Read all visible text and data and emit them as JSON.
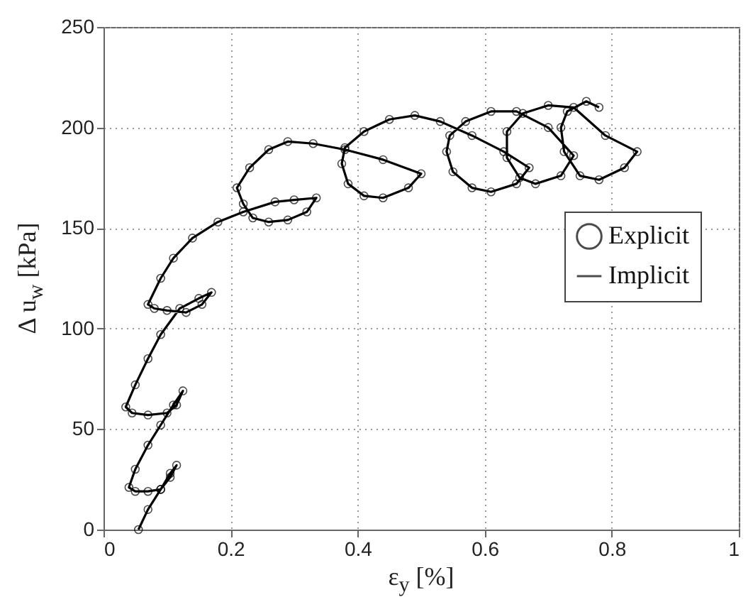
{
  "chart_data": {
    "type": "line",
    "xlabel": "ε$_{y}$ [%]",
    "ylabel": "Δ u$_{w}$ [kPa]",
    "xlim": [
      0,
      1
    ],
    "ylim": [
      0,
      250
    ],
    "xticks": [
      0,
      0.2,
      0.4,
      0.6,
      0.8,
      1
    ],
    "yticks": [
      0,
      50,
      100,
      150,
      200,
      250
    ],
    "grid": true,
    "legend": "right",
    "series": [
      {
        "name": "Explicit",
        "type": "scatter",
        "marker": "circle",
        "color": "#000000",
        "x": [
          0.055,
          0.07,
          0.09,
          0.105,
          0.115,
          0.105,
          0.09,
          0.07,
          0.05,
          0.04,
          0.05,
          0.07,
          0.09,
          0.11,
          0.125,
          0.115,
          0.1,
          0.07,
          0.045,
          0.035,
          0.05,
          0.07,
          0.09,
          0.12,
          0.15,
          0.17,
          0.155,
          0.13,
          0.1,
          0.08,
          0.07,
          0.09,
          0.11,
          0.14,
          0.18,
          0.22,
          0.27,
          0.3,
          0.335,
          0.32,
          0.29,
          0.26,
          0.235,
          0.22,
          0.21,
          0.23,
          0.26,
          0.29,
          0.33,
          0.38,
          0.44,
          0.5,
          0.48,
          0.44,
          0.41,
          0.385,
          0.375,
          0.38,
          0.41,
          0.45,
          0.49,
          0.53,
          0.58,
          0.63,
          0.67,
          0.65,
          0.61,
          0.58,
          0.55,
          0.54,
          0.545,
          0.57,
          0.61,
          0.65,
          0.7,
          0.74,
          0.72,
          0.68,
          0.655,
          0.635,
          0.635,
          0.66,
          0.7,
          0.74,
          0.79,
          0.84,
          0.82,
          0.78,
          0.75,
          0.725,
          0.72,
          0.73,
          0.76,
          0.78
        ],
        "values": [
          0,
          10,
          20,
          28,
          32,
          26,
          20,
          19,
          19,
          21,
          30,
          42,
          52,
          62,
          69,
          62,
          58,
          57,
          58,
          61,
          72,
          85,
          97,
          110,
          115,
          118,
          112,
          108,
          109,
          110,
          112,
          125,
          135,
          145,
          153,
          158,
          163,
          164,
          165,
          158,
          154,
          153,
          155,
          162,
          170,
          180,
          189,
          193,
          192,
          189,
          184,
          177,
          170,
          165,
          166,
          172,
          182,
          190,
          198,
          204,
          206,
          203,
          196,
          188,
          180,
          172,
          168,
          170,
          178,
          188,
          196,
          203,
          208,
          208,
          200,
          186,
          176,
          172,
          175,
          185,
          198,
          207,
          211,
          210,
          196,
          188,
          180,
          174,
          176,
          188,
          200,
          208,
          213,
          210
        ]
      },
      {
        "name": "Implicit",
        "line_style": "solid",
        "color": "#000000",
        "x": [
          0.055,
          0.07,
          0.09,
          0.105,
          0.115,
          0.105,
          0.09,
          0.07,
          0.05,
          0.04,
          0.05,
          0.07,
          0.09,
          0.11,
          0.125,
          0.115,
          0.1,
          0.07,
          0.045,
          0.035,
          0.05,
          0.07,
          0.09,
          0.12,
          0.15,
          0.17,
          0.155,
          0.13,
          0.1,
          0.08,
          0.07,
          0.09,
          0.11,
          0.14,
          0.18,
          0.22,
          0.27,
          0.3,
          0.335,
          0.32,
          0.29,
          0.26,
          0.235,
          0.22,
          0.21,
          0.23,
          0.26,
          0.29,
          0.33,
          0.38,
          0.44,
          0.5,
          0.48,
          0.44,
          0.41,
          0.385,
          0.375,
          0.38,
          0.41,
          0.45,
          0.49,
          0.53,
          0.58,
          0.63,
          0.67,
          0.65,
          0.61,
          0.58,
          0.55,
          0.54,
          0.545,
          0.57,
          0.61,
          0.65,
          0.7,
          0.74,
          0.72,
          0.68,
          0.655,
          0.635,
          0.635,
          0.66,
          0.7,
          0.74,
          0.79,
          0.84,
          0.82,
          0.78,
          0.75,
          0.725,
          0.72,
          0.73,
          0.76,
          0.78
        ],
        "values": [
          0,
          10,
          20,
          28,
          32,
          26,
          20,
          19,
          19,
          21,
          30,
          42,
          52,
          62,
          69,
          62,
          58,
          57,
          58,
          61,
          72,
          85,
          97,
          110,
          115,
          118,
          112,
          108,
          109,
          110,
          112,
          125,
          135,
          145,
          153,
          158,
          163,
          164,
          165,
          158,
          154,
          153,
          155,
          162,
          170,
          180,
          189,
          193,
          192,
          189,
          184,
          177,
          170,
          165,
          166,
          172,
          182,
          190,
          198,
          204,
          206,
          203,
          196,
          188,
          180,
          172,
          168,
          170,
          178,
          188,
          196,
          203,
          208,
          208,
          200,
          186,
          176,
          172,
          175,
          185,
          198,
          207,
          211,
          210,
          196,
          188,
          180,
          174,
          176,
          188,
          200,
          208,
          213,
          210
        ]
      }
    ]
  }
}
